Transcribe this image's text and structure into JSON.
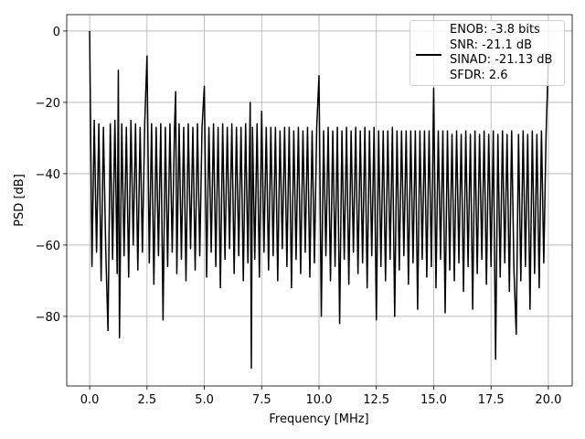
{
  "chart_data": {
    "type": "line",
    "x_label": "Frequency [MHz]",
    "y_label": "PSD [dB]",
    "xlim": [
      -1.0,
      21.04
    ],
    "ylim": [
      -99.5,
      4.6
    ],
    "xticks": [
      {
        "value": 0,
        "label": "0.0"
      },
      {
        "value": 2.5,
        "label": "2.5"
      },
      {
        "value": 5,
        "label": "5.0"
      },
      {
        "value": 7.5,
        "label": "7.5"
      },
      {
        "value": 10,
        "label": "10.0"
      },
      {
        "value": 12.5,
        "label": "12.5"
      },
      {
        "value": 15,
        "label": "15.0"
      },
      {
        "value": 17.5,
        "label": "17.5"
      },
      {
        "value": 20,
        "label": "20.0"
      }
    ],
    "yticks": [
      {
        "value": -80,
        "label": "−80"
      },
      {
        "value": -60,
        "label": "−60"
      },
      {
        "value": -40,
        "label": "−40"
      },
      {
        "value": -20,
        "label": "−20"
      },
      0
    ],
    "grid": true,
    "legend": "upper right",
    "x": [
      0,
      0.1,
      0.2,
      0.3,
      0.4,
      0.5,
      0.6,
      0.7,
      0.8,
      0.9,
      1,
      1.1,
      1.2,
      1.25,
      1.3,
      1.4,
      1.5,
      1.6,
      1.7,
      1.8,
      1.9,
      2,
      2.1,
      2.2,
      2.3,
      2.4,
      2.5,
      2.6,
      2.7,
      2.8,
      2.9,
      3,
      3.1,
      3.2,
      3.3,
      3.4,
      3.5,
      3.6,
      3.7,
      3.75,
      3.8,
      3.9,
      4,
      4.1,
      4.2,
      4.3,
      4.4,
      4.5,
      4.6,
      4.7,
      4.8,
      4.9,
      5,
      5.1,
      5.2,
      5.3,
      5.4,
      5.5,
      5.6,
      5.7,
      5.8,
      5.9,
      6,
      6.1,
      6.2,
      6.3,
      6.4,
      6.5,
      6.6,
      6.7,
      6.8,
      6.9,
      7,
      7.05,
      7.1,
      7.2,
      7.3,
      7.4,
      7.5,
      7.6,
      7.7,
      7.8,
      7.9,
      8,
      8.1,
      8.2,
      8.3,
      8.4,
      8.5,
      8.6,
      8.7,
      8.8,
      8.9,
      9,
      9.1,
      9.2,
      9.3,
      9.4,
      9.5,
      9.6,
      9.7,
      9.8,
      9.9,
      10,
      10.1,
      10.2,
      10.3,
      10.4,
      10.5,
      10.6,
      10.7,
      10.8,
      10.9,
      11,
      11.1,
      11.2,
      11.3,
      11.4,
      11.5,
      11.6,
      11.7,
      11.8,
      11.9,
      12,
      12.1,
      12.2,
      12.3,
      12.4,
      12.5,
      12.6,
      12.7,
      12.8,
      12.9,
      13,
      13.1,
      13.2,
      13.3,
      13.4,
      13.5,
      13.6,
      13.7,
      13.8,
      13.9,
      14,
      14.1,
      14.2,
      14.3,
      14.4,
      14.5,
      14.6,
      14.7,
      14.8,
      14.9,
      15,
      15.1,
      15.2,
      15.3,
      15.4,
      15.5,
      15.6,
      15.7,
      15.8,
      15.9,
      16,
      16.1,
      16.2,
      16.3,
      16.4,
      16.5,
      16.6,
      16.7,
      16.8,
      16.9,
      17,
      17.1,
      17.2,
      17.3,
      17.4,
      17.5,
      17.6,
      17.7,
      17.8,
      17.9,
      18,
      18.1,
      18.2,
      18.3,
      18.4,
      18.5,
      18.6,
      18.7,
      18.8,
      18.9,
      19,
      19.1,
      19.2,
      19.3,
      19.4,
      19.5,
      19.6,
      19.7,
      19.8,
      19.9,
      20
    ],
    "series": [
      {
        "name": "ENOB: -3.8 bits\nSNR: -21.1 dB\nSINAD: -21.13 dB\nSFDR: 2.6",
        "color": "#000000",
        "values": [
          0,
          -66,
          -25,
          -62,
          -26,
          -70,
          -27,
          -61,
          -84,
          -26,
          -64,
          -25,
          -68,
          -11,
          -86,
          -26,
          -63,
          -27,
          -69,
          -25,
          -60,
          -26,
          -67,
          -27,
          -62,
          -26,
          -7,
          -65,
          -26,
          -71,
          -27,
          -63,
          -26,
          -81,
          -27,
          -66,
          -26,
          -62,
          -27,
          -17,
          -68,
          -26,
          -64,
          -27,
          -70,
          -26,
          -61,
          -27,
          -67,
          -26,
          -63,
          -27,
          -15.5,
          -69,
          -27,
          -62,
          -26,
          -66,
          -27,
          -72,
          -26,
          -64,
          -27,
          -61,
          -26,
          -68,
          -27,
          -63,
          -27,
          -70,
          -26,
          -65,
          -20,
          -94.5,
          -27,
          -64,
          -26,
          -69,
          -22.5,
          -62,
          -27,
          -67,
          -27,
          -63,
          -27,
          -70,
          -28,
          -61,
          -27,
          -66,
          -27,
          -72,
          -28,
          -64,
          -27,
          -68,
          -28,
          -62,
          -27,
          -69,
          -28,
          -65,
          -27,
          -12.5,
          -80,
          -28,
          -63,
          -27,
          -70,
          -28,
          -66,
          -27,
          -82,
          -28,
          -64,
          -27,
          -71,
          -28,
          -62,
          -27,
          -68,
          -28,
          -65,
          -27,
          -72,
          -28,
          -63,
          -27,
          -81,
          -28,
          -66,
          -28,
          -70,
          -28,
          -64,
          -27,
          -80,
          -28,
          -67,
          -28,
          -63,
          -28,
          -71,
          -28,
          -65,
          -28,
          -78,
          -28,
          -64,
          -28,
          -69,
          -28,
          -66,
          -16,
          -72,
          -28,
          -64,
          -28,
          -79,
          -28,
          -67,
          -29,
          -70,
          -28,
          -65,
          -29,
          -73,
          -28,
          -66,
          -29,
          -78,
          -28,
          -68,
          -29,
          -64,
          -28,
          -71,
          -29,
          -66,
          -28,
          -92,
          -29,
          -69,
          -28,
          -65,
          -29,
          -73,
          -28,
          -67,
          -85,
          -29,
          -70,
          -28,
          -66,
          -29,
          -78,
          -28,
          -68,
          -29,
          -72,
          -28,
          -65,
          -29,
          -8
        ]
      }
    ]
  }
}
